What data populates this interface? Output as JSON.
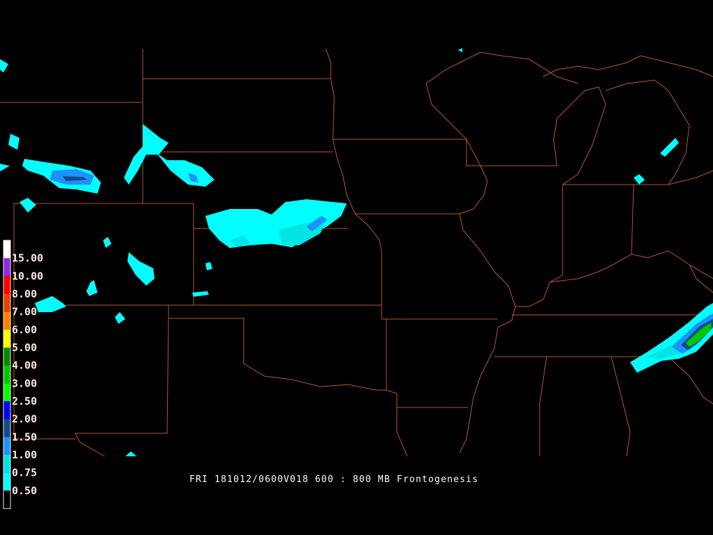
{
  "title": "FRI 181012/0600V018 600 : 800 MB Frontogenesis",
  "colors": {
    "background": "#000000",
    "borders": "#b4582e",
    "title": "#ffffff"
  },
  "legend": {
    "labels": [
      "15.00",
      "10.00",
      "8.00",
      "7.00",
      "6.00",
      "5.00",
      "4.00",
      "3.00",
      "2.50",
      "2.00",
      "1.50",
      "1.00",
      "0.75",
      "0.50"
    ],
    "colors": [
      "#ffffff",
      "#9028e8",
      "#ff0000",
      "#e84000",
      "#ff8000",
      "#ffff00",
      "#008800",
      "#00c800",
      "#00ff00",
      "#0000ff",
      "#104c8c",
      "#1e90ff",
      "#00e4e4",
      "#00ffff",
      "#000000"
    ]
  }
}
